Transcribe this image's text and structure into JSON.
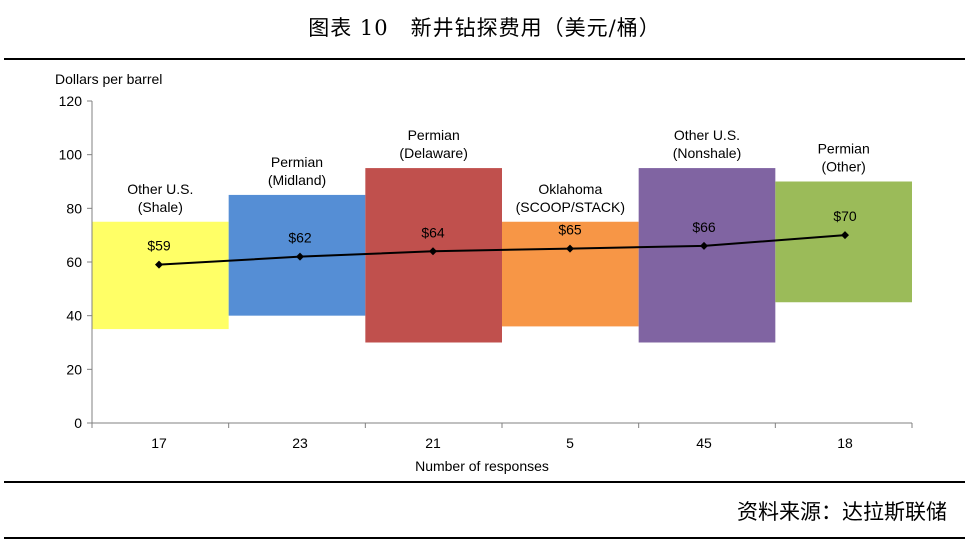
{
  "header": {
    "title": "图表 10　新井钻探费用（美元/桶）"
  },
  "footer": {
    "source": "资料来源：达拉斯联储"
  },
  "chart_data": {
    "type": "bar",
    "title": "",
    "ylabel": "Dollars per barrel",
    "xlabel": "Number of responses",
    "ylim": [
      0,
      120
    ],
    "yticks": [
      0,
      20,
      40,
      60,
      80,
      100,
      120
    ],
    "grid": false,
    "bars": [
      {
        "label_lines": [
          "Other U.S.",
          "(Shale)"
        ],
        "responses": "17",
        "low": 35,
        "high": 75,
        "fill": "#FFFF66",
        "average": 59,
        "average_label": "$59"
      },
      {
        "label_lines": [
          "Permian",
          "(Midland)"
        ],
        "responses": "23",
        "low": 40,
        "high": 85,
        "fill": "#558ED5",
        "average": 62,
        "average_label": "$62"
      },
      {
        "label_lines": [
          "Permian",
          "(Delaware)"
        ],
        "responses": "21",
        "low": 30,
        "high": 95,
        "fill": "#C0504D",
        "average": 64,
        "average_label": "$64"
      },
      {
        "label_lines": [
          "Oklahoma",
          "(SCOOP/STACK)"
        ],
        "responses": "5",
        "low": 36,
        "high": 75,
        "fill": "#F79646",
        "average": 65,
        "average_label": "$65"
      },
      {
        "label_lines": [
          "Other U.S.",
          "(Nonshale)"
        ],
        "responses": "45",
        "low": 30,
        "high": 95,
        "fill": "#8064A2",
        "average": 66,
        "average_label": "$66"
      },
      {
        "label_lines": [
          "Permian",
          "(Other)"
        ],
        "responses": "18",
        "low": 45,
        "high": 90,
        "fill": "#9BBB59",
        "average": 70,
        "average_label": "$70"
      }
    ],
    "line_color": "#000000"
  }
}
